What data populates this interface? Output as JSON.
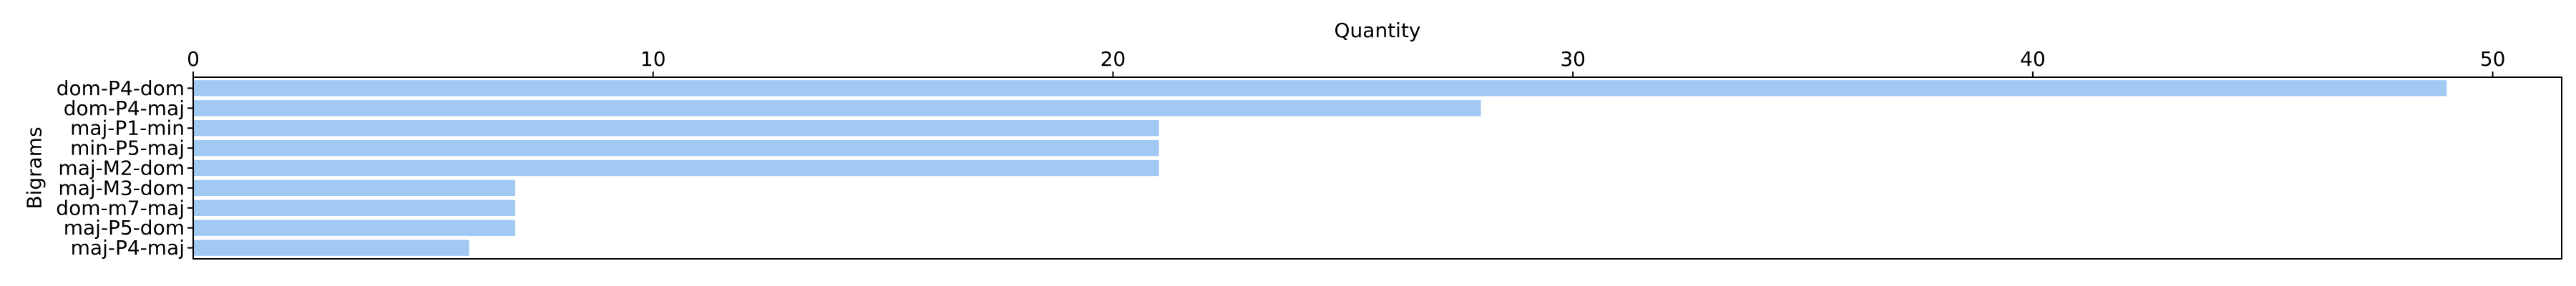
{
  "chart_data": {
    "type": "bar",
    "orientation": "horizontal",
    "xlabel": "Quantity",
    "ylabel": "Bigrams",
    "xlim": [
      0,
      51.5
    ],
    "xticks": [
      0,
      10,
      20,
      30,
      40,
      50
    ],
    "x_axis_position": "top",
    "grid": false,
    "bar_color": "#a1c9f4",
    "categories": [
      "dom-P4-dom",
      "dom-P4-maj",
      "maj-P1-min",
      "min-P5-maj",
      "maj-M2-dom",
      "maj-M3-dom",
      "dom-m7-maj",
      "maj-P5-dom",
      "maj-P4-maj"
    ],
    "values": [
      49,
      28,
      21,
      21,
      21,
      7,
      7,
      7,
      6
    ]
  }
}
